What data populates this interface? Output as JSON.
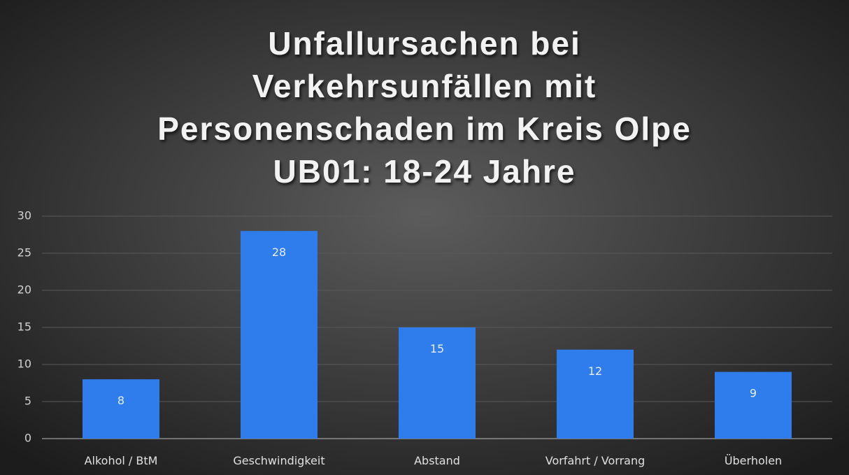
{
  "chart_data": {
    "type": "bar",
    "title": [
      "Unfallursachen bei",
      "Verkehrsunfällen mit",
      "Personenschaden im Kreis Olpe",
      "UB01: 18-24 Jahre"
    ],
    "categories": [
      "Alkohol / BtM",
      "Geschwindigkeit",
      "Abstand",
      "Vorfahrt / Vorrang",
      "Überholen"
    ],
    "values": [
      8,
      28,
      15,
      12,
      9
    ],
    "color": "#2f7ced",
    "ylim": [
      0,
      30
    ],
    "yticks": [
      0,
      5,
      10,
      15,
      20,
      25,
      30
    ],
    "grid": true
  }
}
